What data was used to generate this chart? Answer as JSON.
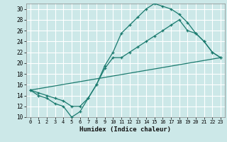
{
  "title": "",
  "xlabel": "Humidex (Indice chaleur)",
  "bg_color": "#cce8e8",
  "grid_color": "#ffffff",
  "line_color": "#1a7a6e",
  "xlim": [
    -0.5,
    23.5
  ],
  "ylim": [
    10,
    31
  ],
  "xticks": [
    0,
    1,
    2,
    3,
    4,
    5,
    6,
    7,
    8,
    9,
    10,
    11,
    12,
    13,
    14,
    15,
    16,
    17,
    18,
    19,
    20,
    21,
    22,
    23
  ],
  "yticks": [
    10,
    12,
    14,
    16,
    18,
    20,
    22,
    24,
    26,
    28,
    30
  ],
  "line1_x": [
    0,
    1,
    2,
    3,
    4,
    5,
    6,
    7,
    8,
    9,
    10,
    11,
    12,
    13,
    14,
    15,
    16,
    17,
    18,
    19,
    20,
    21,
    22,
    23
  ],
  "line1_y": [
    15,
    14.5,
    14,
    13.5,
    13,
    12,
    12,
    13.5,
    16,
    19.5,
    22,
    25.5,
    27,
    28.5,
    30,
    31,
    30.5,
    30,
    29,
    27.5,
    25.5,
    24,
    22,
    21
  ],
  "line2_x": [
    0,
    1,
    2,
    3,
    4,
    5,
    6,
    7,
    8,
    9,
    10,
    11,
    12,
    13,
    14,
    15,
    16,
    17,
    18,
    19,
    20,
    21,
    22,
    23
  ],
  "line2_y": [
    15,
    14,
    13.5,
    12.5,
    12,
    10,
    11,
    13.5,
    16,
    19,
    21,
    21,
    22,
    23,
    24,
    25,
    26,
    27,
    28,
    26,
    25.5,
    24,
    22,
    21
  ],
  "line3_x": [
    0,
    23
  ],
  "line3_y": [
    15,
    21
  ]
}
